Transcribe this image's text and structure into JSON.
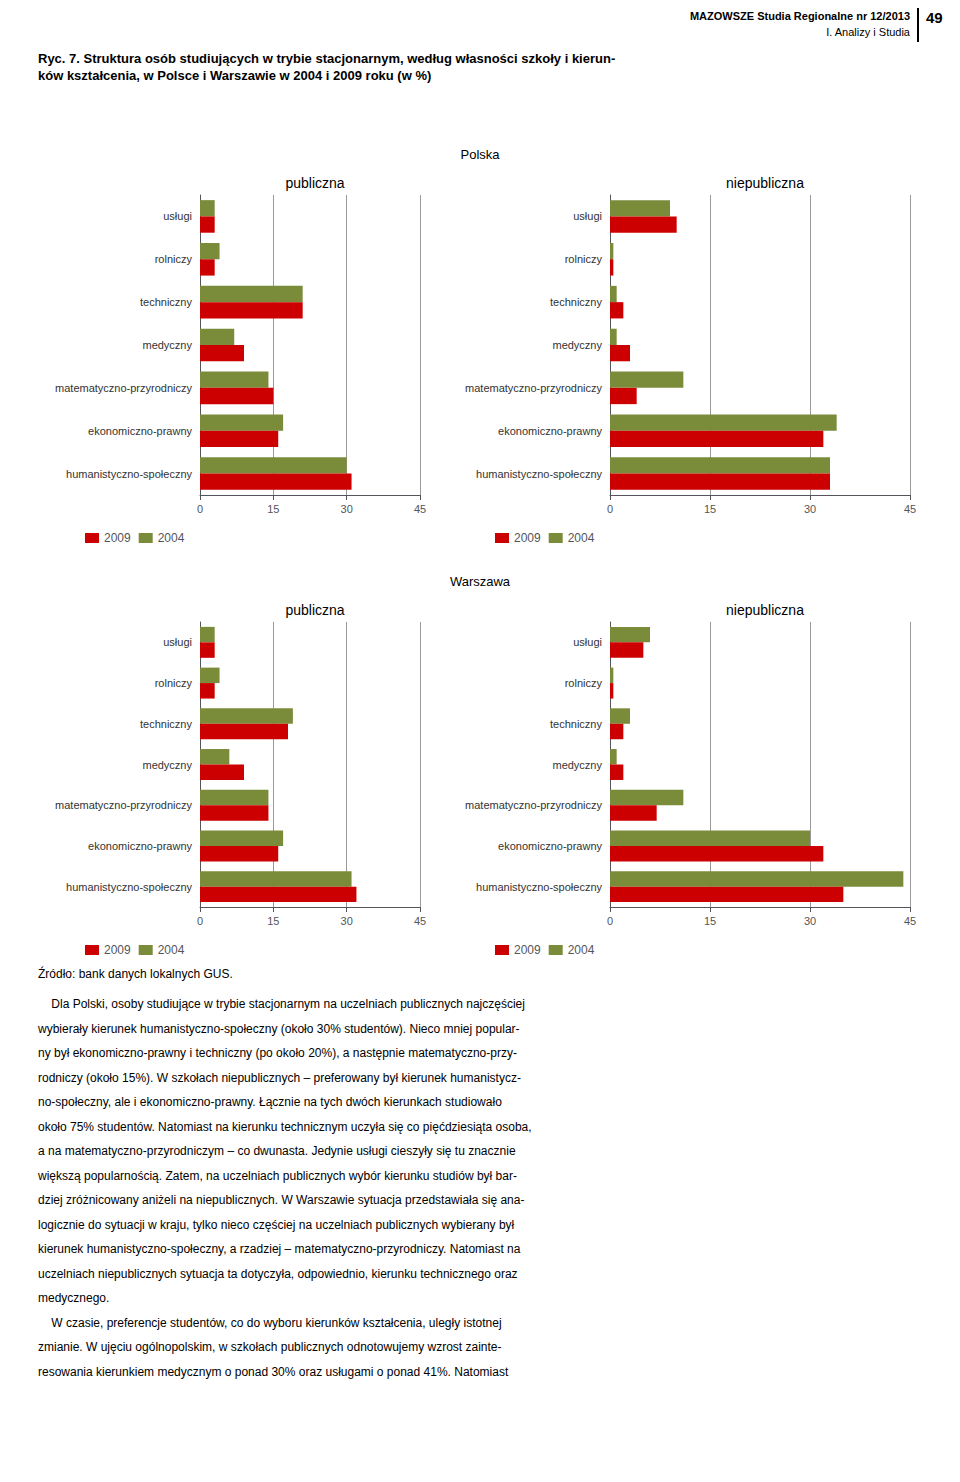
{
  "title": [
    "Ryc. 7. Struktura osób studiujących w trybie stacjonarnym, według własności szkoły i kierun-",
    "ków kształcenia, w Polsce i Warszawie w 2004 i 2009 roku (w %)"
  ],
  "annotations": [
    "MAZOWSZE Studia Regionalne nr 12/2013",
    "I. Analizy i Studia",
    "49",
    "Polska",
    "Warszawa",
    "Źródło: bank danych lokalnych GUS.",
    "    Dla Polski, osoby studiujące w trybie stacjonarnym na uczelniach publicznych najczęściej",
    "wybierały kierunek humanistyczno-społeczny (około 30% studentów). Nieco mniej popular-",
    "ny był ekonomiczno-prawny i techniczny (po około 20%), a następnie matematyczno-przy-",
    "rodniczy (około 15%). W szkołach niepublicznych – preferowany był kierunek humanistycz-",
    "no-społeczny, ale i ekonomiczno-prawny. Łącznie na tych dwóch kierunkach studiowało",
    "około 75% studentów. Natomiast na kierunku technicznym uczyła się co pięćdziesiąta osoba,",
    "a na matematyczno-przyrodniczym – co dwunasta. Jedynie usługi cieszyły się tu znacznie",
    "większą popularnością. Zatem, na uczelniach publicznych wybór kierunku studiów był bar-",
    "dziej zróżnicowany aniżeli na niepublicznych. W Warszawie sytuacja przedstawiała się ana-",
    "logicznie do sytuacji w kraju, tylko nieco częściej na uczelniach publicznych wybierany był",
    "kierunek humanistyczno-społeczny, a rzadziej – matematyczno-przyrodniczy. Natomiast na",
    "uczelniach niepublicznych sytuacja ta dotyczyła, odpowiednio, kierunku technicznego oraz",
    "medycznego.",
    "    W czasie, preferencje studentów, co do wyboru kierunków kształcenia, uległy istotnej",
    "zmianie. W ujęciu ogólnopolskim, w szkołach publicznych odnotowujemy wzrost zainte-",
    "resowania kierunkiem medycznym o ponad 30% oraz usługami o ponad 41%. Natomiast"
  ],
  "chart_data": [
    {
      "type": "bar",
      "orientation": "horizontal",
      "title": "publiczna",
      "categories": [
        "humanistyczno-społeczny",
        "ekonomiczno-prawny",
        "matematyczno-przyrodniczy",
        "medyczny",
        "techniczny",
        "rolniczy",
        "usługi"
      ],
      "series": [
        {
          "name": "2009",
          "color": "#CC0000",
          "values": [
            31,
            16,
            15,
            9,
            21,
            3,
            3
          ]
        },
        {
          "name": "2004",
          "color": "#7A8B3A",
          "values": [
            30,
            17,
            14,
            7,
            21,
            4,
            3
          ]
        }
      ],
      "xlim": [
        0,
        45
      ],
      "xticks": [
        0,
        15,
        30,
        45
      ],
      "grid": true,
      "legend": "lower left"
    },
    {
      "type": "bar",
      "orientation": "horizontal",
      "title": "niepubliczna",
      "categories": [
        "humanistyczno-społeczny",
        "ekonomiczno-prawny",
        "matematyczno-przyrodniczy",
        "medyczny",
        "techniczny",
        "rolniczy",
        "usługi"
      ],
      "series": [
        {
          "name": "2009",
          "color": "#CC0000",
          "values": [
            33,
            32,
            4,
            3,
            2,
            0.5,
            10
          ]
        },
        {
          "name": "2004",
          "color": "#7A8B3A",
          "values": [
            33,
            34,
            11,
            1,
            1,
            0.5,
            9
          ]
        }
      ],
      "xlim": [
        0,
        45
      ],
      "xticks": [
        0,
        15,
        30,
        45
      ],
      "grid": true,
      "legend": "lower left"
    },
    {
      "type": "bar",
      "orientation": "horizontal",
      "title": "publiczna",
      "categories": [
        "humanistyczno-społeczny",
        "ekonomiczno-prawny",
        "matematyczno-przyrodniczy",
        "medyczny",
        "techniczny",
        "rolniczy",
        "usługi"
      ],
      "series": [
        {
          "name": "2009",
          "color": "#CC0000",
          "values": [
            32,
            16,
            14,
            9,
            18,
            3,
            3
          ]
        },
        {
          "name": "2004",
          "color": "#7A8B3A",
          "values": [
            31,
            17,
            14,
            6,
            19,
            4,
            3
          ]
        }
      ],
      "xlim": [
        0,
        45
      ],
      "xticks": [
        0,
        15,
        30,
        45
      ],
      "grid": true,
      "legend": "lower left"
    },
    {
      "type": "bar",
      "orientation": "horizontal",
      "title": "niepubliczna",
      "categories": [
        "humanistyczno-społeczny",
        "ekonomiczno-prawny",
        "matematyczno-przyrodniczy",
        "medyczny",
        "techniczny",
        "rolniczy",
        "usługi"
      ],
      "series": [
        {
          "name": "2009",
          "color": "#CC0000",
          "values": [
            35,
            32,
            7,
            2,
            2,
            0.5,
            5
          ]
        },
        {
          "name": "2004",
          "color": "#7A8B3A",
          "values": [
            44,
            30,
            11,
            1,
            3,
            0.5,
            6
          ]
        }
      ],
      "xlim": [
        0,
        45
      ],
      "xticks": [
        0,
        15,
        30,
        45
      ],
      "grid": true,
      "legend": "lower left"
    }
  ]
}
